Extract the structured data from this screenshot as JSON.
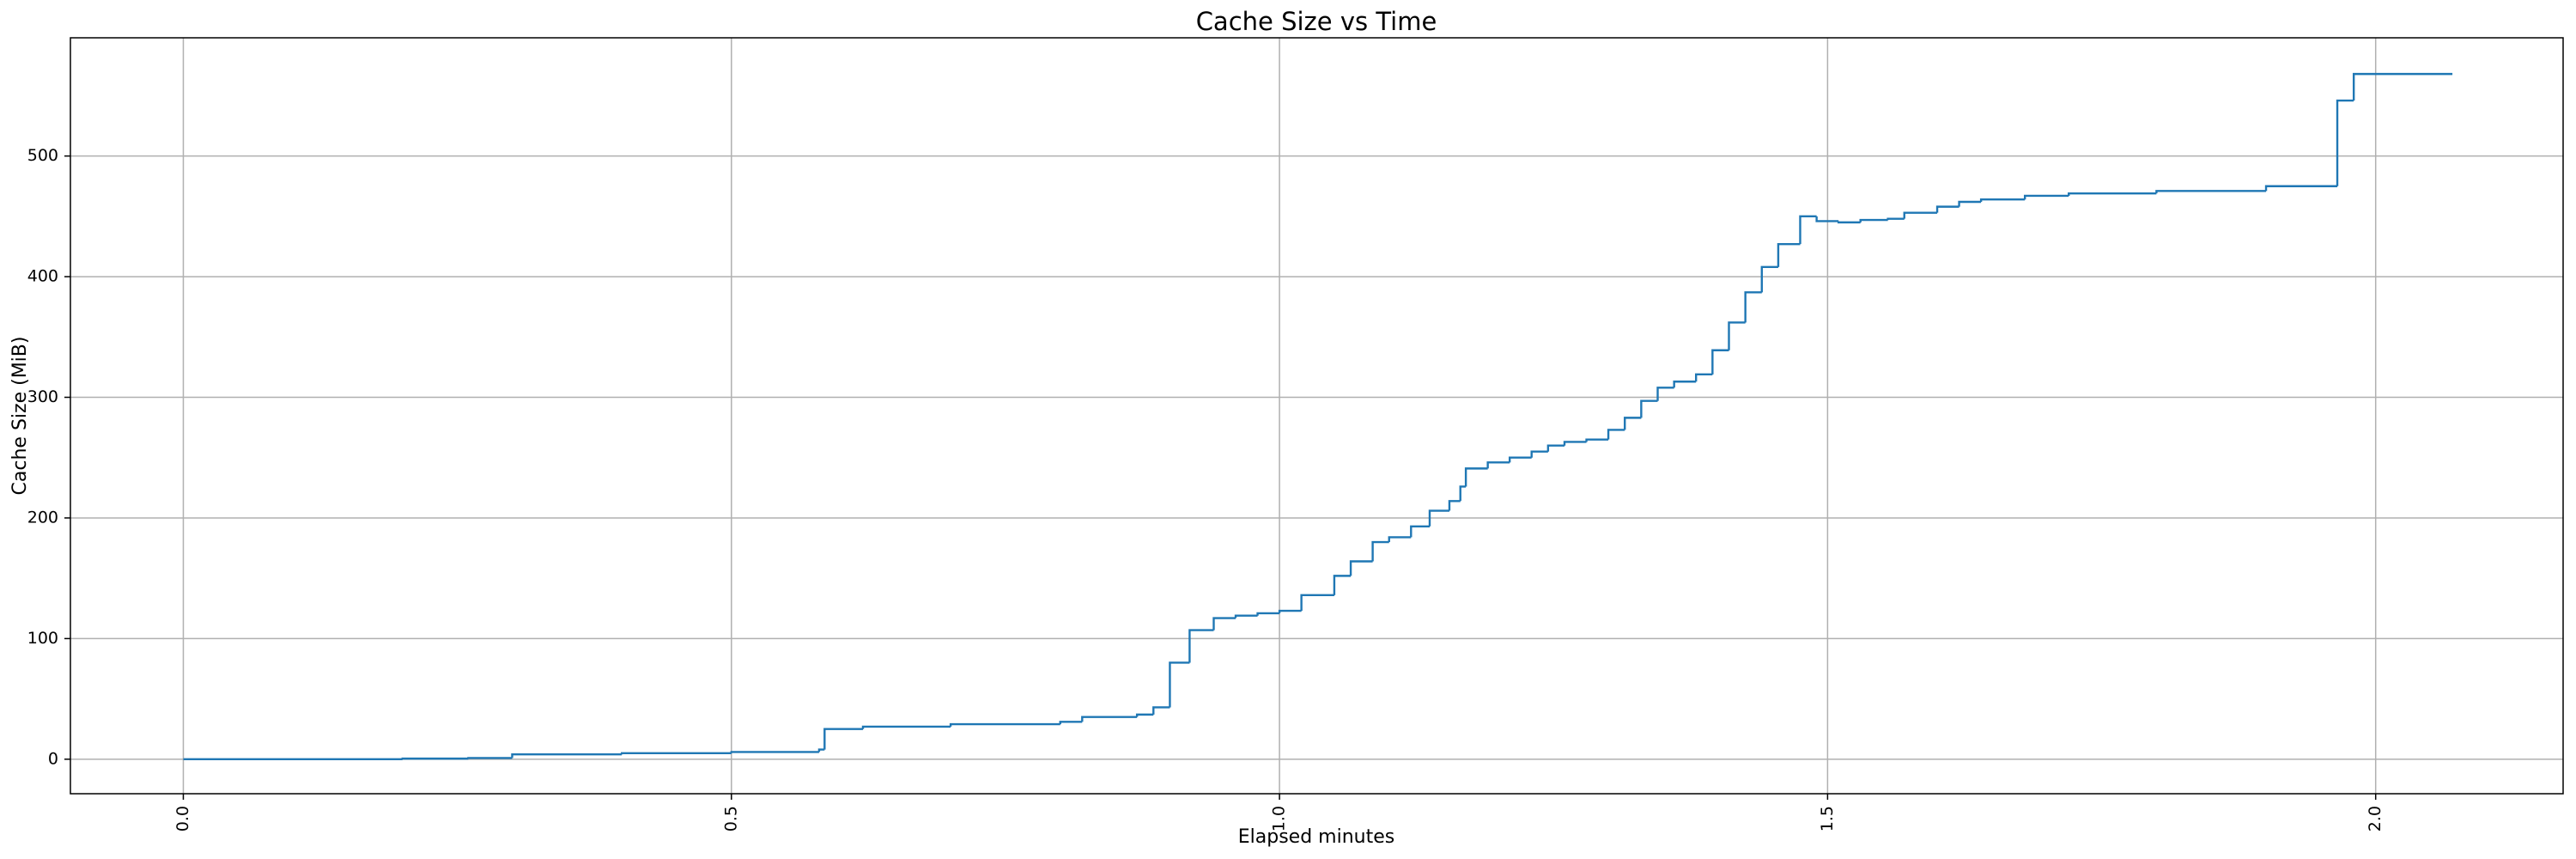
{
  "chart_data": {
    "type": "line",
    "step": "post",
    "title": "Cache Size vs Time",
    "x_label": "Elapsed minutes",
    "y_label": "Cache Size (MiB)",
    "grid": true,
    "color": "#1f77b4",
    "xlim": [
      -0.103,
      2.171
    ],
    "ylim": [
      -28.6,
      598
    ],
    "xticks": [
      {
        "value": 0,
        "label": "0.0"
      },
      {
        "value": 0.5,
        "label": "0.5"
      },
      {
        "value": 1,
        "label": "1.0"
      },
      {
        "value": 1.5,
        "label": "1.5"
      },
      {
        "value": 2,
        "label": "2.0"
      }
    ],
    "yticks": [
      0,
      100,
      200,
      300,
      400,
      500
    ],
    "x": [
      0,
      0.2,
      0.26,
      0.3,
      0.4,
      0.5,
      0.58,
      0.585,
      0.62,
      0.7,
      0.8,
      0.82,
      0.87,
      0.885,
      0.9,
      0.918,
      0.94,
      0.96,
      0.98,
      1.0,
      1.02,
      1.05,
      1.065,
      1.085,
      1.1,
      1.12,
      1.137,
      1.155,
      1.165,
      1.17,
      1.19,
      1.21,
      1.23,
      1.245,
      1.26,
      1.28,
      1.3,
      1.315,
      1.33,
      1.345,
      1.36,
      1.38,
      1.395,
      1.41,
      1.425,
      1.44,
      1.455,
      1.475,
      1.49,
      1.51,
      1.53,
      1.555,
      1.57,
      1.6,
      1.62,
      1.64,
      1.68,
      1.72,
      1.8,
      1.9,
      1.965,
      1.98,
      2.07
    ],
    "values": [
      0,
      0.5,
      1,
      4,
      5,
      6,
      8,
      25,
      27,
      29,
      31,
      35,
      37,
      43,
      80,
      107,
      117,
      119,
      121,
      123,
      136,
      152,
      164,
      180,
      184,
      193,
      206,
      214,
      226,
      241,
      246,
      250,
      255,
      260,
      263,
      265,
      273,
      283,
      297,
      308,
      313,
      319,
      339,
      362,
      387,
      408,
      427,
      450,
      446,
      445,
      447,
      448,
      453,
      458,
      462,
      464,
      467,
      469,
      471,
      475,
      546,
      568,
      568
    ]
  }
}
